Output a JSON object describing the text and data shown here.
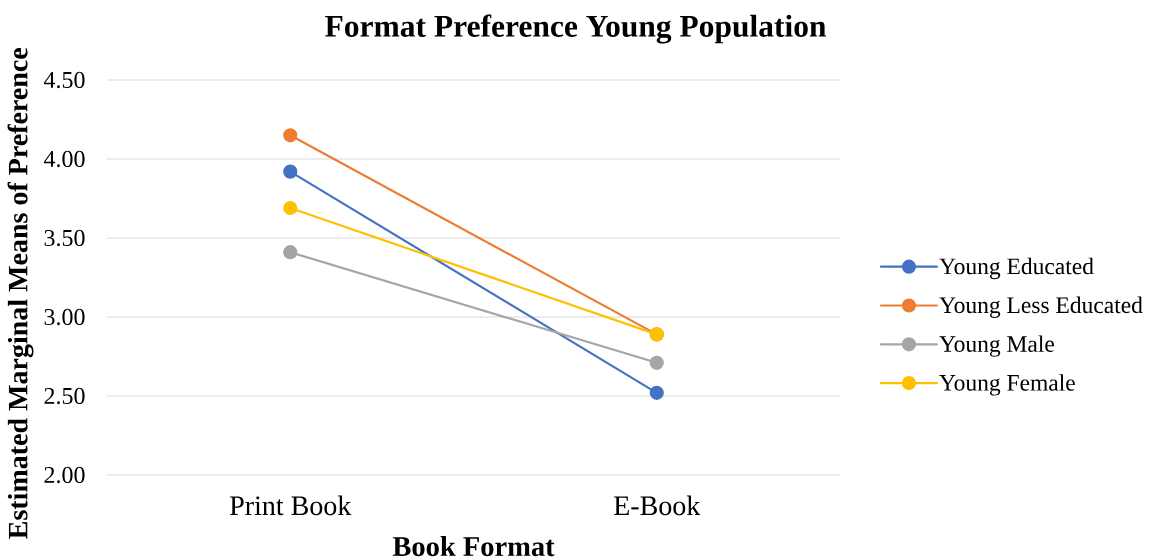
{
  "chart_data": {
    "type": "line",
    "title": "Format Preference Young Population",
    "xlabel": "Book Format",
    "ylabel": "Estimated Marginal Means of Preference",
    "categories": [
      "Print Book",
      "E-Book"
    ],
    "series": [
      {
        "name": "Young Educated",
        "color": "#4472c4",
        "values": [
          3.92,
          2.52
        ]
      },
      {
        "name": "Young Less Educated",
        "color": "#ed7d31",
        "values": [
          4.15,
          2.89
        ]
      },
      {
        "name": "Young Male",
        "color": "#a5a5a5",
        "values": [
          3.41,
          2.71
        ]
      },
      {
        "name": "Young Female",
        "color": "#ffc000",
        "values": [
          3.69,
          2.89
        ]
      }
    ],
    "ylim": [
      2,
      4.5
    ],
    "yticks": [
      {
        "value": 2,
        "label": "2.00"
      },
      {
        "value": 2.5,
        "label": "2.50"
      },
      {
        "value": 3,
        "label": "3.00"
      },
      {
        "value": 3.5,
        "label": "3.50"
      },
      {
        "value": 4,
        "label": "4.00"
      },
      {
        "value": 4.5,
        "label": "4.50"
      }
    ],
    "grid": "y",
    "legend": "right",
    "marker": "circle",
    "line_style": "solid"
  }
}
